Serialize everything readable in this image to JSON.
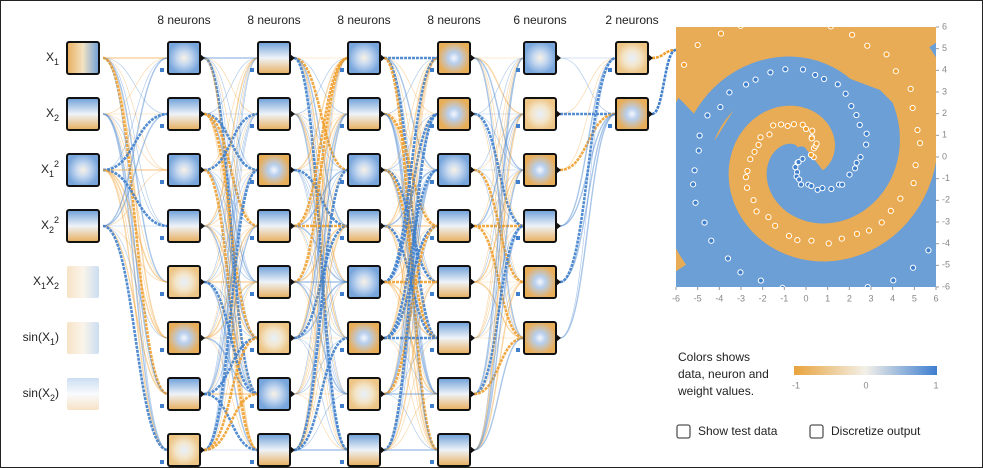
{
  "layers": {
    "headers": [
      "8 neurons",
      "8 neurons",
      "8 neurons",
      "8 neurons",
      "6 neurons",
      "2 neurons"
    ]
  },
  "inputs": [
    [
      {
        "text": "X"
      },
      {
        "text": "1",
        "pos": "sub"
      }
    ],
    [
      {
        "text": "X"
      },
      {
        "text": "2",
        "pos": "sub"
      }
    ],
    [
      {
        "text": "X"
      },
      {
        "text": "1",
        "pos": "sub"
      },
      {
        "text": "2",
        "pos": "sup"
      }
    ],
    [
      {
        "text": "X"
      },
      {
        "text": "2",
        "pos": "sub"
      },
      {
        "text": "2",
        "pos": "sup"
      }
    ],
    [
      {
        "text": "X"
      },
      {
        "text": "1",
        "pos": "sub"
      },
      {
        "text": "X"
      },
      {
        "text": "2",
        "pos": "sub"
      }
    ],
    [
      {
        "text": "sin(X"
      },
      {
        "text": "1",
        "pos": "sub"
      },
      {
        "text": ")"
      }
    ],
    [
      {
        "text": "sin(X"
      },
      {
        "text": "2",
        "pos": "sub"
      },
      {
        "text": ")"
      }
    ]
  ],
  "output": {
    "yticks": [
      6,
      5,
      4,
      3,
      2,
      1,
      0,
      -1,
      -2,
      -3,
      -4,
      -5,
      -6
    ],
    "xticks": [
      -6,
      -5,
      -4,
      -3,
      -2,
      -1,
      0,
      1,
      2,
      3,
      4,
      5,
      6
    ]
  },
  "legend": {
    "lines": [
      "Colors shows",
      "data, neuron and",
      "weight values."
    ],
    "scale": [
      "-1",
      "0",
      "1"
    ]
  },
  "controls": {
    "show_test_data": "Show test data",
    "discretize_output": "Discretize output"
  }
}
